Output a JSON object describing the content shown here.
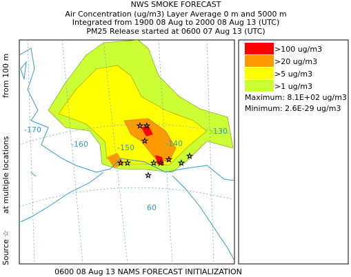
{
  "header": {
    "title": "NWS SMOKE FORECAST",
    "lines": [
      "Air Concentration (ug/m3) Layer Average    0 m and  5000 m",
      "Integrated from 1900 08 Aug to 2000 08 Aug 13 (UTC)",
      "PM25 Release started at 0600 07 Aug 13 (UTC)"
    ]
  },
  "legend": {
    "items": [
      {
        "label": ">100 ug/m3",
        "color": "#ff0000"
      },
      {
        "label": ">20 ug/m3",
        "color": "#ff9900"
      },
      {
        "label": ">5 ug/m3",
        "color": "#ffff00"
      },
      {
        "label": ">1 ug/m3",
        "color": "#ccff33"
      }
    ],
    "maximum": "Maximum: 8.1E+02 ug/m3",
    "minimum": "Minimum: 2.6E-29 ug/m3"
  },
  "side_labels": [
    "Source ☆",
    "at multiple locations",
    "from  100 m"
  ],
  "map": {
    "grid_labels": [
      "-170",
      "-160",
      "-150",
      "-140",
      "-130",
      "60"
    ]
  },
  "footer": "0600 08 Aug 13 NAMS FORECAST INITIALIZATION"
}
